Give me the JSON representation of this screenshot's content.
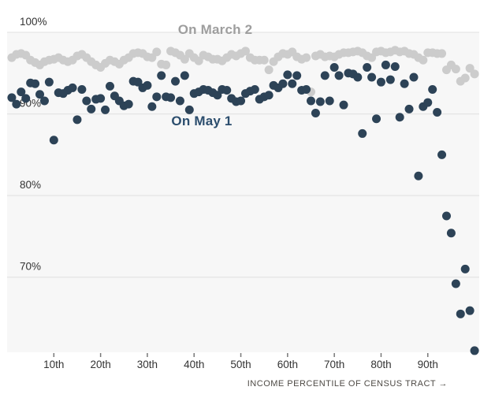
{
  "colors": {
    "march_dots": "#cccccc",
    "may_dots": "#2d4357",
    "march_label": "#9e9e9e",
    "may_label": "#2c4e6e",
    "plot_background": "#f7f7f7",
    "gridline": "#e0e0e0",
    "axis_text": "#333333",
    "axis_title_text": "#4e4a45"
  },
  "chart_data": {
    "type": "scatter",
    "x_axis": {
      "label": "INCOME PERCENTILE OF CENSUS TRACT →",
      "tick_labels": [
        "10th",
        "20th",
        "30th",
        "40th",
        "50th",
        "60th",
        "70th",
        "80th",
        "90th"
      ],
      "tick_values": [
        10,
        20,
        30,
        40,
        50,
        60,
        70,
        80,
        90
      ],
      "range": [
        0,
        101
      ]
    },
    "y_axis": {
      "tick_labels": [
        "100%",
        "90%",
        "80%",
        "70%"
      ],
      "tick_values": [
        100,
        90,
        80,
        70
      ],
      "range": [
        60.8,
        100
      ],
      "unit": "percent leaving home"
    },
    "grid": true,
    "legend_position": "inline-annotations",
    "x_percentiles": [
      1,
      2,
      3,
      4,
      5,
      6,
      7,
      8,
      9,
      10,
      11,
      12,
      13,
      14,
      15,
      16,
      17,
      18,
      19,
      20,
      21,
      22,
      23,
      24,
      25,
      26,
      27,
      28,
      29,
      30,
      31,
      32,
      33,
      34,
      35,
      36,
      37,
      38,
      39,
      40,
      41,
      42,
      43,
      44,
      45,
      46,
      47,
      48,
      49,
      50,
      51,
      52,
      53,
      54,
      55,
      56,
      57,
      58,
      59,
      60,
      61,
      62,
      63,
      64,
      65,
      66,
      67,
      68,
      69,
      70,
      71,
      72,
      73,
      74,
      75,
      76,
      77,
      78,
      79,
      80,
      81,
      82,
      83,
      84,
      85,
      86,
      87,
      88,
      89,
      90,
      91,
      92,
      93,
      94,
      95,
      96,
      97,
      98,
      99,
      100
    ],
    "series": [
      {
        "name": "On March 2",
        "color": "#cccccc",
        "values": [
          96.9,
          97.3,
          97.4,
          97.2,
          96.6,
          96.3,
          96.0,
          96.4,
          96.6,
          96.7,
          96.9,
          96.6,
          96.4,
          96.6,
          97.1,
          97.3,
          96.9,
          96.4,
          96.0,
          95.7,
          96.2,
          96.6,
          96.4,
          96.1,
          96.6,
          96.9,
          97.4,
          97.5,
          97.4,
          97.0,
          96.9,
          97.6,
          96.1,
          96.0,
          97.7,
          97.5,
          97.2,
          96.7,
          97.4,
          96.9,
          96.5,
          97.2,
          97.0,
          96.7,
          96.7,
          96.5,
          96.9,
          97.3,
          97.1,
          97.4,
          97.7,
          96.9,
          96.6,
          96.6,
          96.6,
          95.4,
          96.4,
          97.0,
          97.4,
          97.3,
          97.6,
          97.0,
          96.7,
          96.9,
          92.7,
          97.1,
          97.3,
          97.0,
          97.1,
          97.0,
          97.3,
          97.5,
          97.5,
          97.6,
          97.7,
          97.5,
          97.1,
          96.9,
          97.6,
          97.7,
          97.5,
          97.6,
          97.8,
          97.6,
          97.7,
          97.4,
          97.3,
          96.9,
          96.6,
          97.5,
          97.5,
          97.4,
          97.4,
          95.4,
          96.0,
          95.5,
          94.0,
          94.4,
          95.6,
          94.9
        ]
      },
      {
        "name": "On May 1",
        "color": "#2d4357",
        "values": [
          92.0,
          91.2,
          92.7,
          91.9,
          93.8,
          93.7,
          92.4,
          91.6,
          93.9,
          86.8,
          92.6,
          92.5,
          92.9,
          93.2,
          89.3,
          93.0,
          91.6,
          90.6,
          91.8,
          91.9,
          90.5,
          93.4,
          92.2,
          91.6,
          91.0,
          91.2,
          94.0,
          93.9,
          93.2,
          93.5,
          90.9,
          92.1,
          94.7,
          92.1,
          92.0,
          94.0,
          91.6,
          94.7,
          90.5,
          92.5,
          92.7,
          93.0,
          92.9,
          92.6,
          92.3,
          93.0,
          92.9,
          91.9,
          91.5,
          91.6,
          92.5,
          92.8,
          93.0,
          91.8,
          92.1,
          92.3,
          93.5,
          93.2,
          93.7,
          94.8,
          93.7,
          94.7,
          92.9,
          93.0,
          91.6,
          90.1,
          91.5,
          94.7,
          91.6,
          95.7,
          94.7,
          91.1,
          95.0,
          94.9,
          94.5,
          87.6,
          95.7,
          94.5,
          89.4,
          93.9,
          96.0,
          94.2,
          95.8,
          89.6,
          93.7,
          90.6,
          94.5,
          82.4,
          90.9,
          91.4,
          93.0,
          90.2,
          85.0,
          77.5,
          75.4,
          69.2,
          65.5,
          71.0,
          65.9,
          61.0
        ]
      }
    ],
    "annotations": [
      {
        "text": "On March 2",
        "color": "#9e9e9e",
        "x": 44.5,
        "y": 100.3
      },
      {
        "text": "On May 1",
        "color": "#2c4e6e",
        "x": 41.7,
        "y": 89.1
      }
    ]
  }
}
